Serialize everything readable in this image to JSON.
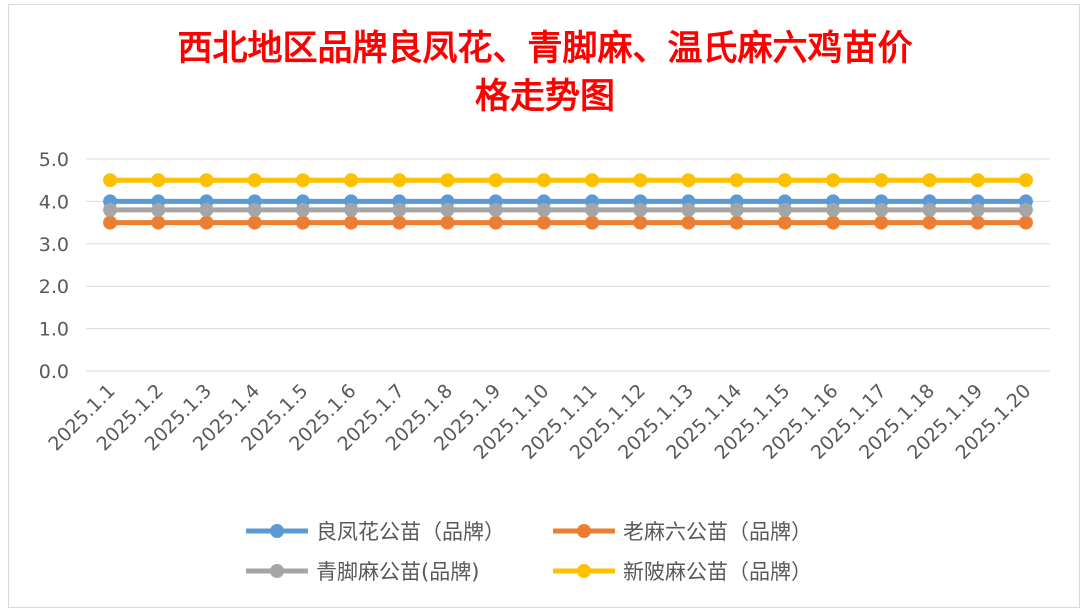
{
  "chart_data": {
    "type": "line",
    "title_lines": [
      "西北地区品牌良凤花、青脚麻、温氏麻六鸡苗价",
      "格走势图"
    ],
    "categories": [
      "2025.1.1",
      "2025.1.2",
      "2025.1.3",
      "2025.1.4",
      "2025.1.5",
      "2025.1.6",
      "2025.1.7",
      "2025.1.8",
      "2025.1.9",
      "2025.1.10",
      "2025.1.11",
      "2025.1.12",
      "2025.1.13",
      "2025.1.14",
      "2025.1.15",
      "2025.1.16",
      "2025.1.17",
      "2025.1.18",
      "2025.1.19",
      "2025.1.20"
    ],
    "ylim": [
      0,
      5
    ],
    "yticks": [
      "0.0",
      "1.0",
      "2.0",
      "3.0",
      "4.0",
      "5.0"
    ],
    "grid": true,
    "legend_position": "bottom",
    "series": [
      {
        "name": "良凤花公苗（品牌）",
        "color": "#5b9bd5",
        "values": [
          4.0,
          4.0,
          4.0,
          4.0,
          4.0,
          4.0,
          4.0,
          4.0,
          4.0,
          4.0,
          4.0,
          4.0,
          4.0,
          4.0,
          4.0,
          4.0,
          4.0,
          4.0,
          4.0,
          4.0
        ]
      },
      {
        "name": "老麻六公苗（品牌）",
        "color": "#ed7d31",
        "values": [
          3.5,
          3.5,
          3.5,
          3.5,
          3.5,
          3.5,
          3.5,
          3.5,
          3.5,
          3.5,
          3.5,
          3.5,
          3.5,
          3.5,
          3.5,
          3.5,
          3.5,
          3.5,
          3.5,
          3.5
        ]
      },
      {
        "name": "青脚麻公苗(品牌)",
        "color": "#a5a5a5",
        "values": [
          3.8,
          3.8,
          3.8,
          3.8,
          3.8,
          3.8,
          3.8,
          3.8,
          3.8,
          3.8,
          3.8,
          3.8,
          3.8,
          3.8,
          3.8,
          3.8,
          3.8,
          3.8,
          3.8,
          3.8
        ]
      },
      {
        "name": "新陂麻公苗（品牌）",
        "color": "#ffc000",
        "values": [
          4.5,
          4.5,
          4.5,
          4.5,
          4.5,
          4.5,
          4.5,
          4.5,
          4.5,
          4.5,
          4.5,
          4.5,
          4.5,
          4.5,
          4.5,
          4.5,
          4.5,
          4.5,
          4.5,
          4.5
        ]
      }
    ]
  },
  "colors": {
    "title": "#ff0000",
    "grid": "#d9d9d9",
    "axis_text": "#595959"
  }
}
